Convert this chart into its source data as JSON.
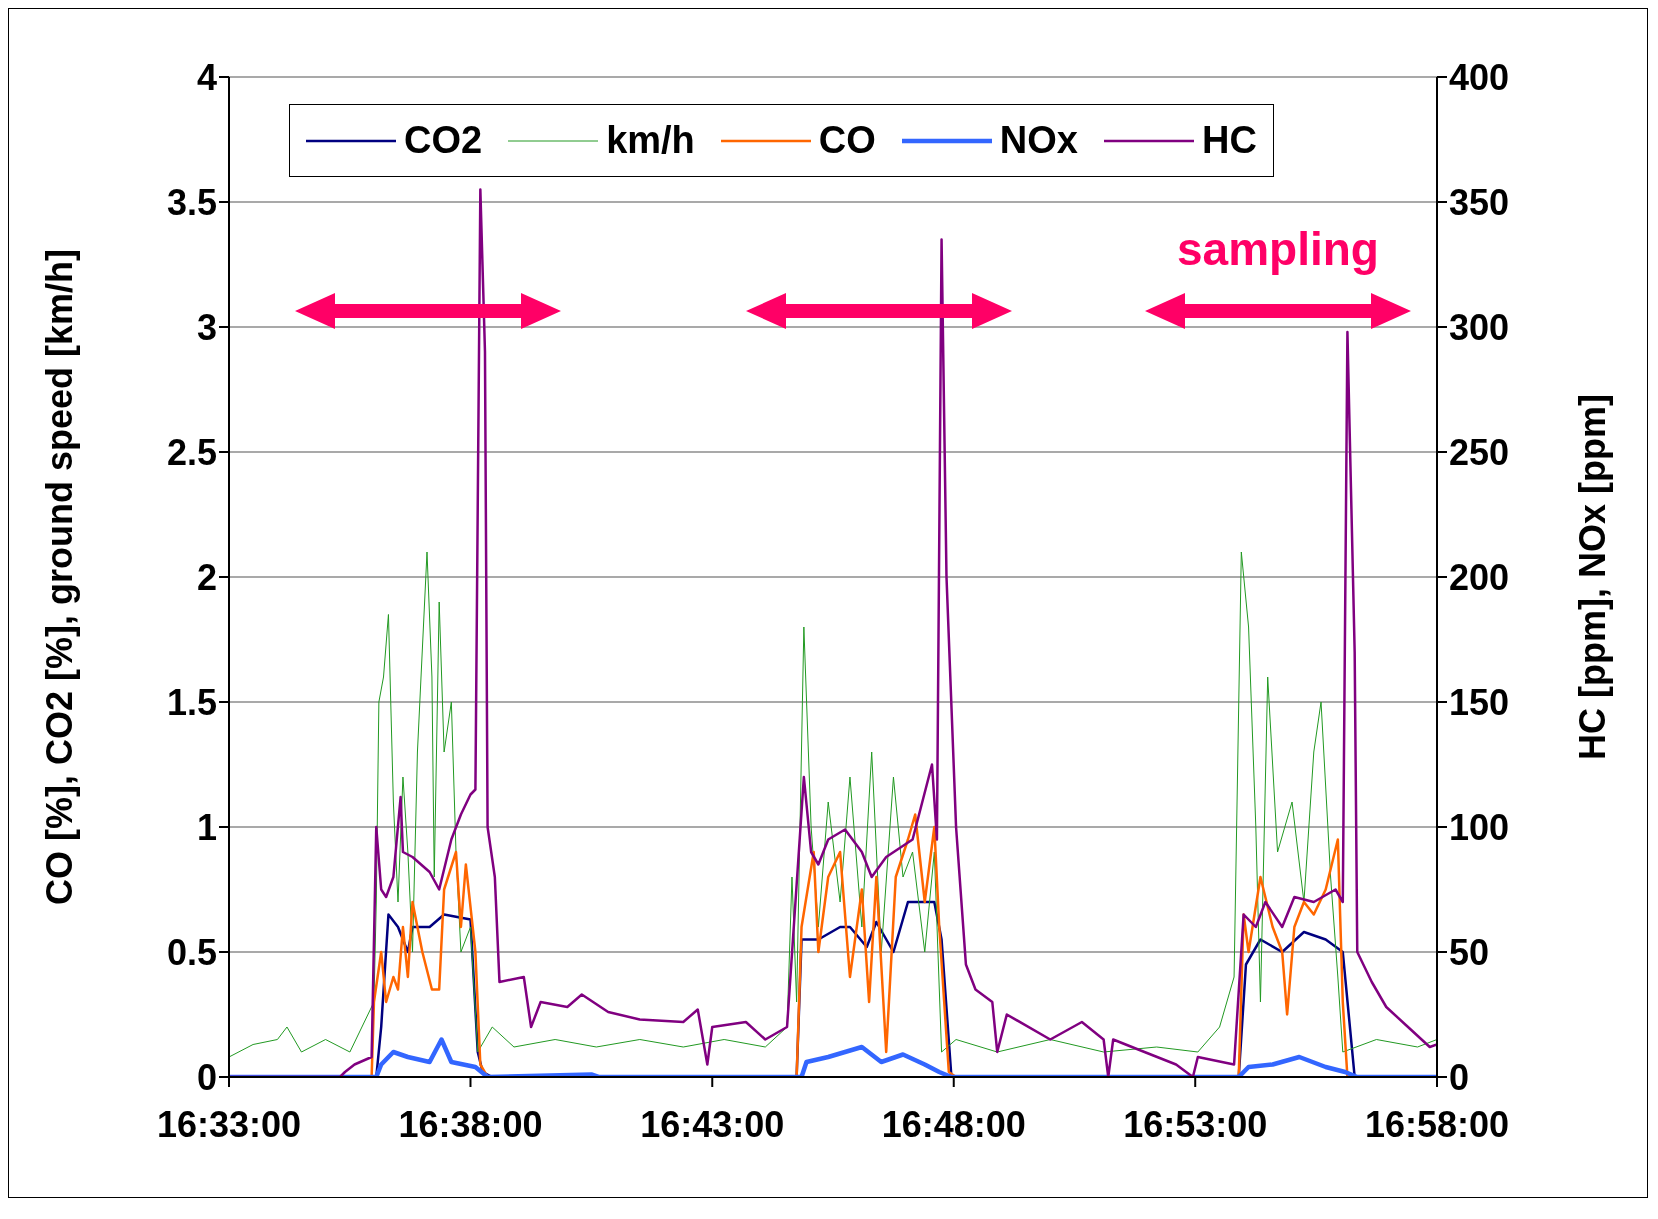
{
  "chart_data": {
    "type": "line",
    "ylabel": "CO [%], CO2 [%], ground speed [km/h]",
    "y2label": "HC [ppm], NOx [ppm]",
    "xlim": [
      16.55,
      16.9667
    ],
    "xticks": [
      {
        "value": 16.55,
        "label": "16:33:00"
      },
      {
        "value": 16.6333,
        "label": "16:38:00"
      },
      {
        "value": 16.7167,
        "label": "16:43:00"
      },
      {
        "value": 16.8,
        "label": "16:48:00"
      },
      {
        "value": 16.8833,
        "label": "16:53:00"
      },
      {
        "value": 16.9667,
        "label": "16:58:00"
      }
    ],
    "ylim": [
      0,
      4
    ],
    "yticks": [
      0,
      0.5,
      1,
      1.5,
      2,
      2.5,
      3,
      3.5,
      4
    ],
    "y2lim": [
      0,
      400
    ],
    "y2ticks": [
      0,
      50,
      100,
      150,
      200,
      250,
      300,
      350,
      400
    ],
    "grid": "y",
    "legend": "top",
    "line_style": "solid",
    "marker": "none",
    "annotations": [
      "sampling"
    ],
    "series": [
      {
        "name": "CO2",
        "color": "#000080",
        "x": [
          16.55,
          16.6008,
          16.6025,
          16.605,
          16.6083,
          16.6117,
          16.6133,
          16.6192,
          16.6242,
          16.6333,
          16.6358,
          16.6375,
          16.6408,
          16.7458,
          16.7475,
          16.7533,
          16.7608,
          16.7642,
          16.77,
          16.7733,
          16.7792,
          16.7842,
          16.7933,
          16.7958,
          16.7992,
          16.8983,
          16.9008,
          16.9058,
          16.9133,
          16.9208,
          16.9283,
          16.9342,
          16.9383,
          16.9667
        ],
        "values": [
          0,
          0,
          0.2,
          0.65,
          0.6,
          0.5,
          0.6,
          0.6,
          0.65,
          0.63,
          0.1,
          0.02,
          0,
          0,
          0.55,
          0.55,
          0.6,
          0.6,
          0.52,
          0.62,
          0.5,
          0.7,
          0.7,
          0.55,
          0,
          0,
          0.45,
          0.55,
          0.5,
          0.58,
          0.55,
          0.5,
          0,
          0
        ]
      },
      {
        "name": "km/h",
        "color": "#229922",
        "x": [
          16.55,
          16.5583,
          16.5667,
          16.57,
          16.575,
          16.5833,
          16.5917,
          16.6,
          16.6008,
          16.6017,
          16.6033,
          16.605,
          16.6067,
          16.6083,
          16.61,
          16.6117,
          16.6133,
          16.615,
          16.6183,
          16.62,
          16.6208,
          16.6225,
          16.6242,
          16.6267,
          16.6283,
          16.63,
          16.6333,
          16.6358,
          16.6408,
          16.6483,
          16.6625,
          16.6767,
          16.6917,
          16.7067,
          16.7208,
          16.735,
          16.7425,
          16.7442,
          16.7458,
          16.7483,
          16.7508,
          16.7533,
          16.7567,
          16.7608,
          16.7642,
          16.7683,
          16.7717,
          16.775,
          16.7792,
          16.7825,
          16.7858,
          16.79,
          16.7933,
          16.7958,
          16.8008,
          16.815,
          16.8333,
          16.8517,
          16.87,
          16.8842,
          16.8917,
          16.8967,
          16.8992,
          16.9017,
          16.9042,
          16.9058,
          16.9083,
          16.9117,
          16.9142,
          16.9167,
          16.9208,
          16.9242,
          16.9267,
          16.93,
          16.9325,
          16.9342,
          16.9458,
          16.96,
          16.9667
        ],
        "values": [
          0.08,
          0.13,
          0.15,
          0.2,
          0.1,
          0.15,
          0.1,
          0.3,
          0.7,
          1.5,
          1.6,
          1.85,
          1.1,
          0.7,
          1.2,
          0.9,
          0.5,
          1.3,
          2.1,
          1.6,
          0.8,
          1.9,
          1.3,
          1.5,
          0.9,
          0.5,
          0.6,
          0.1,
          0.2,
          0.12,
          0.15,
          0.12,
          0.15,
          0.12,
          0.15,
          0.12,
          0.2,
          0.8,
          0.3,
          1.8,
          1.0,
          0.6,
          1.1,
          0.7,
          1.2,
          0.6,
          1.3,
          0.5,
          1.2,
          0.8,
          0.9,
          0.5,
          0.9,
          0.1,
          0.15,
          0.1,
          0.15,
          0.1,
          0.12,
          0.1,
          0.2,
          0.4,
          2.1,
          1.8,
          1.0,
          0.3,
          1.6,
          0.9,
          1.0,
          1.1,
          0.7,
          1.3,
          1.5,
          0.8,
          0.4,
          0.1,
          0.15,
          0.12,
          0.15
        ]
      },
      {
        "name": "CO",
        "color": "#ff6600",
        "x": [
          16.55,
          16.5992,
          16.6,
          16.6025,
          16.6042,
          16.6067,
          16.6083,
          16.61,
          16.6117,
          16.6133,
          16.6167,
          16.62,
          16.6225,
          16.6242,
          16.6283,
          16.63,
          16.6317,
          16.635,
          16.6367,
          16.6392,
          16.7458,
          16.7475,
          16.7517,
          16.7533,
          16.7567,
          16.7608,
          16.7642,
          16.7683,
          16.7708,
          16.7733,
          16.7767,
          16.78,
          16.7842,
          16.7867,
          16.79,
          16.7933,
          16.795,
          16.7983,
          16.8008,
          16.8983,
          16.9,
          16.9017,
          16.9058,
          16.91,
          16.9133,
          16.915,
          16.9175,
          16.9208,
          16.9242,
          16.9283,
          16.9325,
          16.9342,
          16.9358,
          16.9667
        ],
        "values": [
          0,
          0,
          0.3,
          0.5,
          0.3,
          0.4,
          0.35,
          0.6,
          0.4,
          0.7,
          0.5,
          0.35,
          0.35,
          0.75,
          0.9,
          0.6,
          0.85,
          0.5,
          0.05,
          0,
          0,
          0.6,
          0.9,
          0.5,
          0.8,
          0.9,
          0.4,
          0.75,
          0.3,
          0.8,
          0.1,
          0.8,
          0.95,
          1.05,
          0.7,
          1.0,
          0.6,
          0.02,
          0,
          0,
          0.65,
          0.5,
          0.8,
          0.6,
          0.5,
          0.25,
          0.6,
          0.7,
          0.65,
          0.75,
          0.95,
          0.3,
          0,
          0
        ]
      },
      {
        "name": "NOx",
        "color": "#3366ff",
        "axis": "y2",
        "x": [
          16.55,
          16.6008,
          16.6025,
          16.6067,
          16.6117,
          16.6192,
          16.6233,
          16.6267,
          16.635,
          16.6392,
          16.675,
          16.6775,
          16.7475,
          16.7492,
          16.7567,
          16.7683,
          16.775,
          16.7825,
          16.79,
          16.795,
          16.7992,
          16.8983,
          16.9017,
          16.91,
          16.9192,
          16.9283,
          16.935,
          16.9392,
          16.9667
        ],
        "values": [
          0,
          0,
          5,
          10,
          8,
          6,
          15,
          6,
          4,
          0,
          1,
          0,
          0,
          6,
          8,
          12,
          6,
          9,
          5,
          2,
          0,
          0,
          4,
          5,
          8,
          4,
          2,
          0,
          0
        ]
      },
      {
        "name": "HC",
        "color": "#800080",
        "axis": "y2",
        "x": [
          16.55,
          16.5883,
          16.59,
          16.5933,
          16.5992,
          16.6008,
          16.6025,
          16.6042,
          16.6067,
          16.6092,
          16.61,
          16.6133,
          16.6192,
          16.6225,
          16.6267,
          16.63,
          16.6333,
          16.635,
          16.6367,
          16.6383,
          16.6392,
          16.6417,
          16.6433,
          16.6517,
          16.6542,
          16.6575,
          16.6667,
          16.6717,
          16.6808,
          16.6917,
          16.7067,
          16.7117,
          16.715,
          16.7167,
          16.7283,
          16.735,
          16.7425,
          16.7483,
          16.7508,
          16.7533,
          16.7567,
          16.7625,
          16.7683,
          16.7717,
          16.7767,
          16.7858,
          16.7925,
          16.7942,
          16.7958,
          16.7975,
          16.8008,
          16.8042,
          16.8075,
          16.8133,
          16.815,
          16.8183,
          16.8333,
          16.8442,
          16.8517,
          16.8533,
          16.855,
          16.8658,
          16.8767,
          16.8825,
          16.8842,
          16.8967,
          16.9,
          16.9042,
          16.9075,
          16.9133,
          16.9175,
          16.9242,
          16.9317,
          16.9342,
          16.9358,
          16.9383,
          16.9392,
          16.9442,
          16.9492,
          16.9567,
          16.9642,
          16.9667
        ],
        "values": [
          0,
          0,
          2,
          5,
          8,
          100,
          75,
          72,
          80,
          112,
          90,
          88,
          82,
          75,
          95,
          105,
          113,
          115,
          355,
          290,
          100,
          80,
          38,
          40,
          20,
          30,
          28,
          33,
          26,
          23,
          22,
          27,
          5,
          20,
          22,
          15,
          20,
          120,
          90,
          85,
          95,
          99,
          90,
          80,
          88,
          95,
          125,
          95,
          335,
          200,
          100,
          45,
          35,
          30,
          10,
          25,
          15,
          22,
          15,
          0,
          15,
          10,
          5,
          0,
          8,
          5,
          65,
          60,
          70,
          60,
          72,
          70,
          75,
          70,
          298,
          170,
          50,
          38,
          28,
          20,
          12,
          13
        ]
      }
    ]
  }
}
